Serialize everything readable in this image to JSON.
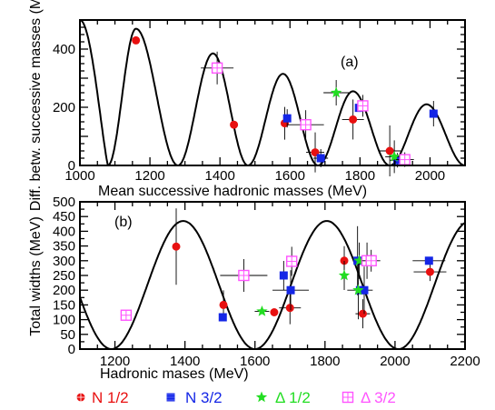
{
  "colors": {
    "nucleon_half": "#e81010",
    "nucleon_three_half": "#1426e6",
    "delta_half": "#22dd22",
    "delta_three_half": "#ff55ff",
    "curve": "#000000",
    "frame": "#000000"
  },
  "legend": {
    "items": [
      {
        "symbol": "circle-red",
        "label": "N 1/2"
      },
      {
        "symbol": "square-blue",
        "label": "N 3/2"
      },
      {
        "symbol": "star-green",
        "label": "Δ 1/2"
      },
      {
        "symbol": "open-square-magenta",
        "label": "Δ 3/2"
      }
    ]
  },
  "chart_data": [
    {
      "type": "scatter",
      "panel_label": "(a)",
      "xlabel": "Mean successive hadronic masses  (MeV)",
      "ylabel": "Diff. betw. successive masses (MeV)",
      "xlim": [
        1000,
        2100
      ],
      "ylim": [
        0,
        500
      ],
      "xticks": [
        1000,
        1200,
        1400,
        1600,
        1800,
        2000
      ],
      "yticks": [
        0,
        200,
        400
      ],
      "curve": {
        "type": "oscillating-fit",
        "min_value": 0,
        "peak_values": [
          470,
          385,
          315,
          255,
          210
        ]
      },
      "series": [
        {
          "name": "N 1/2",
          "marker": "circle",
          "points": [
            {
              "x": 1160,
              "y": 430
            },
            {
              "x": 1440,
              "y": 140
            },
            {
              "x": 1585,
              "y": 145
            },
            {
              "x": 1672,
              "y": 45
            },
            {
              "x": 1780,
              "y": 158
            },
            {
              "x": 1885,
              "y": 50
            }
          ]
        },
        {
          "name": "N 3/2",
          "marker": "square",
          "points": [
            {
              "x": 1592,
              "y": 162
            },
            {
              "x": 1688,
              "y": 25
            },
            {
              "x": 1797,
              "y": 198
            },
            {
              "x": 1907,
              "y": 18
            },
            {
              "x": 2010,
              "y": 178
            }
          ]
        },
        {
          "name": "Δ 1/2",
          "marker": "star",
          "points": [
            {
              "x": 1732,
              "y": 250
            },
            {
              "x": 1898,
              "y": 30
            }
          ]
        },
        {
          "name": "Δ 3/2",
          "marker": "open-square",
          "points": [
            {
              "x": 1392,
              "y": 335
            },
            {
              "x": 1645,
              "y": 140
            },
            {
              "x": 1808,
              "y": 205
            },
            {
              "x": 1928,
              "y": 20
            }
          ]
        }
      ]
    },
    {
      "type": "scatter",
      "panel_label": "(b)",
      "xlabel": "Hadronic mases (MeV)",
      "ylabel": "Total widths (MeV)",
      "xlim": [
        1100,
        2200
      ],
      "ylim": [
        0,
        500
      ],
      "xticks": [
        1200,
        1400,
        1600,
        1800,
        2000,
        2200
      ],
      "yticks": [
        0,
        50,
        100,
        150,
        200,
        250,
        300,
        350,
        400,
        450,
        500
      ],
      "curve": {
        "type": "oscillating-fit",
        "min_value": 0,
        "max_value": 435
      },
      "series": [
        {
          "name": "N 1/2",
          "marker": "circle",
          "points": [
            {
              "x": 1375,
              "y": 348
            },
            {
              "x": 1510,
              "y": 150
            },
            {
              "x": 1655,
              "y": 125
            },
            {
              "x": 1700,
              "y": 140
            },
            {
              "x": 1855,
              "y": 300
            },
            {
              "x": 1908,
              "y": 120
            },
            {
              "x": 2100,
              "y": 262
            }
          ]
        },
        {
          "name": "N 3/2",
          "marker": "square",
          "points": [
            {
              "x": 1508,
              "y": 108
            },
            {
              "x": 1682,
              "y": 250
            },
            {
              "x": 1702,
              "y": 200
            },
            {
              "x": 1893,
              "y": 300
            },
            {
              "x": 1900,
              "y": 200
            },
            {
              "x": 1912,
              "y": 200
            },
            {
              "x": 2097,
              "y": 300
            }
          ]
        },
        {
          "name": "Δ 1/2",
          "marker": "star",
          "points": [
            {
              "x": 1620,
              "y": 128
            },
            {
              "x": 1855,
              "y": 250
            },
            {
              "x": 1895,
              "y": 200
            },
            {
              "x": 1898,
              "y": 300
            }
          ]
        },
        {
          "name": "Δ 3/2",
          "marker": "open-square",
          "points": [
            {
              "x": 1232,
              "y": 115
            },
            {
              "x": 1568,
              "y": 250
            },
            {
              "x": 1705,
              "y": 298
            },
            {
              "x": 1920,
              "y": 300
            },
            {
              "x": 1932,
              "y": 300
            }
          ]
        }
      ]
    }
  ]
}
